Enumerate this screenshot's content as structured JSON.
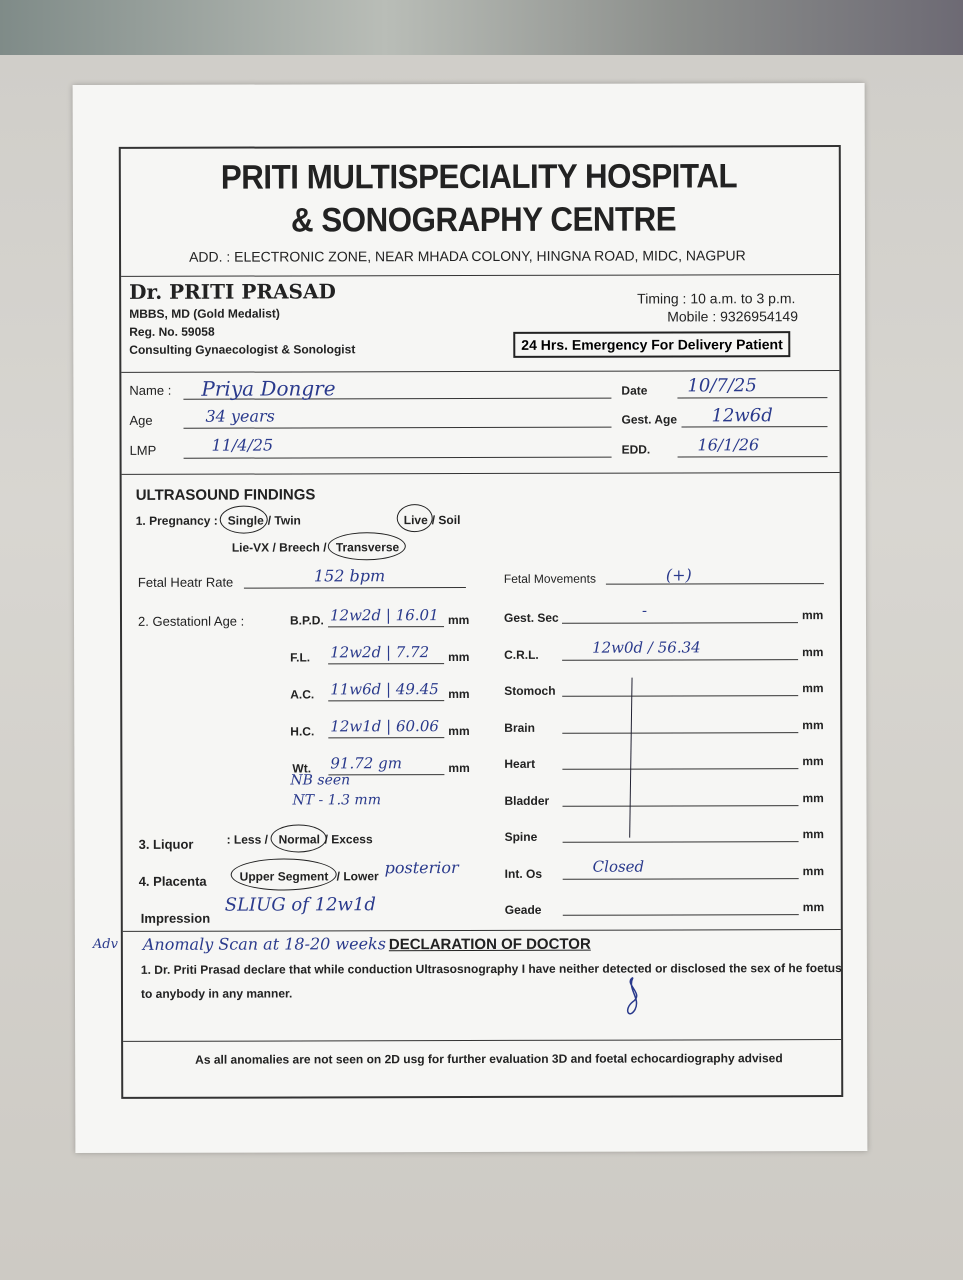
{
  "hospital": {
    "name_line1": "PRITI MULTISPECIALITY HOSPITAL",
    "name_line2": "& SONOGRAPHY CENTRE",
    "address": "ADD. : ELECTRONIC ZONE, NEAR MHADA COLONY, HINGNA ROAD, MIDC, NAGPUR"
  },
  "doctor": {
    "name": "Dr. PRITI PRASAD",
    "degree": "MBBS, MD (Gold Medalist)",
    "reg": "Reg. No. 59058",
    "role": "Consulting Gynaecologist & Sonologist",
    "timing": "Timing : 10 a.m. to 3 p.m.",
    "mobile": "Mobile : 9326954149",
    "emergency": "24 Hrs. Emergency For Delivery Patient"
  },
  "patient": {
    "name_label": "Name :",
    "name": "Priya Dongre",
    "age_label": "Age",
    "age": "34 years",
    "lmp_label": "LMP",
    "lmp": "11/4/25",
    "date_label": "Date",
    "date": "10/7/25",
    "gest_age_label": "Gest. Age",
    "gest_age": "12w6d",
    "edd_label": "EDD.",
    "edd": "16/1/26"
  },
  "findings": {
    "heading": "ULTRASOUND FINDINGS",
    "pregnancy_label": "1. Pregnancy :",
    "single": "Single",
    "twin": "/ Twin",
    "live": "Live",
    "soil": "/ Soil",
    "lie": "Lie-VX / Breech /",
    "transverse": "Transverse",
    "fhr_label": "Fetal Heatr Rate",
    "fhr": "152 bpm",
    "fm_label": "Fetal Movements",
    "fm": "(+)",
    "ga_label": "2. Gestationl Age :",
    "unit": "mm",
    "left": [
      {
        "label": "B.P.D.",
        "value": "12w2d | 16.01"
      },
      {
        "label": "F.L.",
        "value": "12w2d | 7.72"
      },
      {
        "label": "A.C.",
        "value": "11w6d | 49.45"
      },
      {
        "label": "H.C.",
        "value": "12w1d | 60.06"
      },
      {
        "label": "Wt.",
        "value": "91.72 gm"
      }
    ],
    "nb_note": "NB seen",
    "nt_note": "NT - 1.3 mm",
    "right": [
      {
        "label": "Gest. Sec",
        "value": "-"
      },
      {
        "label": "C.R.L.",
        "value": "12w0d / 56.34"
      },
      {
        "label": "Stomoch",
        "value": ""
      },
      {
        "label": "Brain",
        "value": ""
      },
      {
        "label": "Heart",
        "value": ""
      },
      {
        "label": "Bladder",
        "value": ""
      },
      {
        "label": "Spine",
        "value": ""
      },
      {
        "label": "Int. Os",
        "value": "Closed"
      },
      {
        "label": "Geade",
        "value": ""
      }
    ],
    "liquor_label": "3. Liquor",
    "liquor_less": ": Less /",
    "liquor_normal": "Normal",
    "liquor_excess": "/ Excess",
    "placenta_label": "4. Placenta",
    "placenta_upper": "Upper Segment",
    "placenta_lower": "/ Lower",
    "placenta_note": "posterior",
    "impression_label": "Impression",
    "impression": "SLIUG of 12w1d"
  },
  "advice": {
    "margin": "Adv",
    "text": "Anomaly Scan at 18-20 weeks"
  },
  "declaration": {
    "heading": "DECLARATION OF DOCTOR",
    "text1": "1. Dr. Priti Prasad declare that while conduction Ultrasosnography I have neither  detected or disclosed the sex of he foetus",
    "text2": "to anybody in any manner.",
    "footer": "As all anomalies are not seen on 2D usg for further evaluation 3D and foetal echocardiography advised"
  }
}
